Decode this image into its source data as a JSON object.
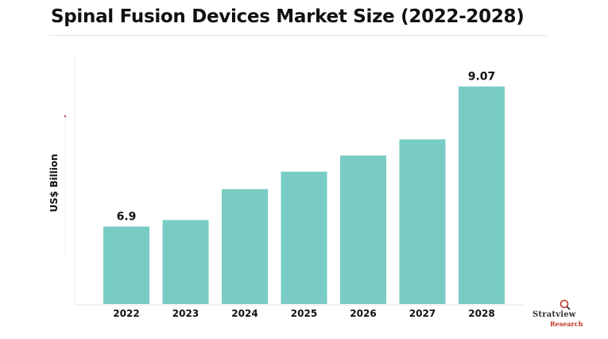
{
  "chart_data": {
    "type": "bar",
    "title": "Spinal Fusion Devices Market Size (2022-2028)",
    "ylabel": "US$ Billion",
    "xlabel": "",
    "categories": [
      "2022",
      "2023",
      "2024",
      "2025",
      "2026",
      "2027",
      "2028"
    ],
    "values": [
      6.9,
      7.0,
      7.48,
      7.75,
      8.0,
      8.25,
      9.07
    ],
    "data_labels": [
      "6.9",
      "",
      "",
      "",
      "",
      "",
      "9.07"
    ],
    "ylim": [
      5.7,
      9.3
    ],
    "grid": false,
    "bar_color": "#79ccc4"
  },
  "logo": {
    "line1": "Stratview",
    "line2": "Research"
  }
}
